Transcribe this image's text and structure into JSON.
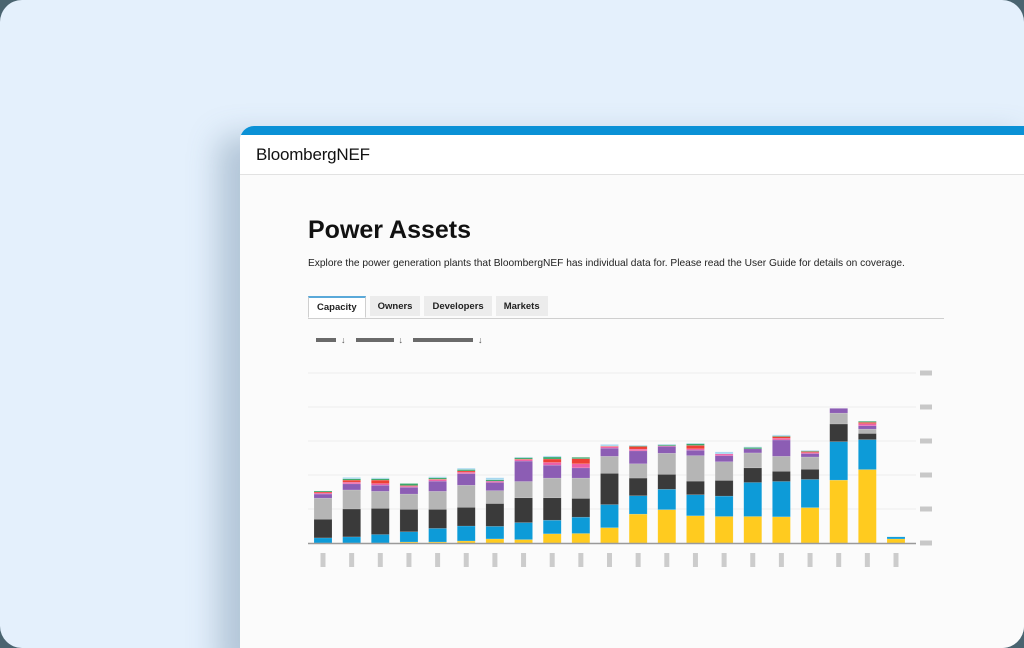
{
  "header": {
    "brand": "BloombergNEF"
  },
  "page": {
    "title": "Power Assets",
    "description": "Explore the power generation plants that BloombergNEF has individual data for. Please read the User Guide for details on coverage."
  },
  "tabs": [
    {
      "label": "Capacity",
      "active": true
    },
    {
      "label": "Owners",
      "active": false
    },
    {
      "label": "Developers",
      "active": false
    },
    {
      "label": "Markets",
      "active": false
    }
  ],
  "filters": [
    {
      "placeholder_width": 20,
      "icon": "arrow-down-icon"
    },
    {
      "placeholder_width": 38,
      "icon": "arrow-down-icon"
    },
    {
      "placeholder_width": 60,
      "icon": "arrow-down-icon"
    }
  ],
  "colors": {
    "accent": "#0a91d6",
    "solar": "#ffcb1f",
    "wind": "#0d9bd8",
    "coal": "#3a3a3a",
    "gas": "#b5b5b5",
    "hydro": "#8c5db4",
    "pink": "#ec5fa7",
    "red": "#ee4034",
    "green": "#3aa86b",
    "lightblue": "#a8d8f0"
  },
  "chart_data": {
    "type": "bar",
    "stacked": true,
    "title": "",
    "xlabel": "",
    "ylabel": "",
    "categories": [
      "1",
      "2",
      "3",
      "4",
      "5",
      "6",
      "7",
      "8",
      "9",
      "10",
      "11",
      "12",
      "13",
      "14",
      "15",
      "16",
      "17",
      "18",
      "19",
      "20",
      "21"
    ],
    "ylim": [
      0,
      5
    ],
    "yticks": [
      0,
      1,
      2,
      3,
      4,
      5
    ],
    "grid": true,
    "legend": null,
    "note": "Axis tick labels are redacted (gray placeholders); values expressed in gridline units.",
    "series": [
      {
        "name": "yellow",
        "color": "#ffcb1f",
        "values": [
          0.0,
          0.0,
          0.0,
          0.03,
          0.03,
          0.06,
          0.12,
          0.1,
          0.27,
          0.28,
          0.45,
          0.85,
          0.98,
          0.8,
          0.78,
          0.78,
          0.77,
          1.04,
          1.85,
          2.16,
          0.12
        ]
      },
      {
        "name": "blue",
        "color": "#0d9bd8",
        "values": [
          0.15,
          0.18,
          0.25,
          0.3,
          0.4,
          0.44,
          0.37,
          0.5,
          0.4,
          0.48,
          0.68,
          0.54,
          0.6,
          0.62,
          0.6,
          1.0,
          1.04,
          0.83,
          1.13,
          0.88,
          0.06
        ]
      },
      {
        "name": "dark",
        "color": "#3a3a3a",
        "values": [
          0.55,
          0.82,
          0.77,
          0.66,
          0.56,
          0.55,
          0.67,
          0.73,
          0.66,
          0.55,
          0.92,
          0.52,
          0.44,
          0.4,
          0.46,
          0.43,
          0.3,
          0.3,
          0.52,
          0.18,
          0
        ]
      },
      {
        "name": "gray",
        "color": "#b5b5b5",
        "values": [
          0.62,
          0.56,
          0.5,
          0.45,
          0.53,
          0.65,
          0.38,
          0.48,
          0.58,
          0.6,
          0.5,
          0.42,
          0.62,
          0.75,
          0.55,
          0.44,
          0.44,
          0.36,
          0.32,
          0.13,
          0
        ]
      },
      {
        "name": "purple",
        "color": "#8c5db4",
        "values": [
          0.12,
          0.18,
          0.18,
          0.2,
          0.3,
          0.34,
          0.24,
          0.6,
          0.38,
          0.3,
          0.24,
          0.38,
          0.2,
          0.16,
          0.18,
          0.12,
          0.48,
          0.1,
          0.14,
          0.1,
          0
        ]
      },
      {
        "name": "pink",
        "color": "#ec5fa7",
        "values": [
          0.03,
          0.05,
          0.05,
          0.03,
          0.04,
          0.04,
          0.04,
          0.04,
          0.08,
          0.12,
          0.04,
          0.05,
          0.02,
          0.04,
          0.05,
          0.0,
          0.05,
          0.03,
          0,
          0.06,
          0
        ]
      },
      {
        "name": "red",
        "color": "#ee4034",
        "values": [
          0.03,
          0.06,
          0.1,
          0.02,
          0.02,
          0.04,
          0.0,
          0.02,
          0.1,
          0.15,
          0.02,
          0.08,
          0.0,
          0.1,
          0.0,
          0.0,
          0.05,
          0.03,
          0,
          0.04,
          0
        ]
      },
      {
        "name": "green",
        "color": "#3aa86b",
        "values": [
          0.03,
          0.04,
          0.04,
          0.06,
          0.04,
          0.04,
          0.04,
          0.04,
          0.06,
          0.04,
          0.0,
          0.02,
          0.03,
          0.05,
          0.0,
          0.04,
          0.02,
          0.02,
          0,
          0.03,
          0
        ]
      },
      {
        "name": "lightblue",
        "color": "#a8d8f0",
        "values": [
          0.0,
          0.04,
          0.03,
          0.0,
          0.03,
          0.04,
          0.06,
          0.02,
          0.03,
          0.0,
          0.05,
          0.02,
          0.02,
          0.02,
          0.06,
          0.02,
          0.03,
          0.02,
          0,
          0,
          0
        ]
      }
    ]
  }
}
